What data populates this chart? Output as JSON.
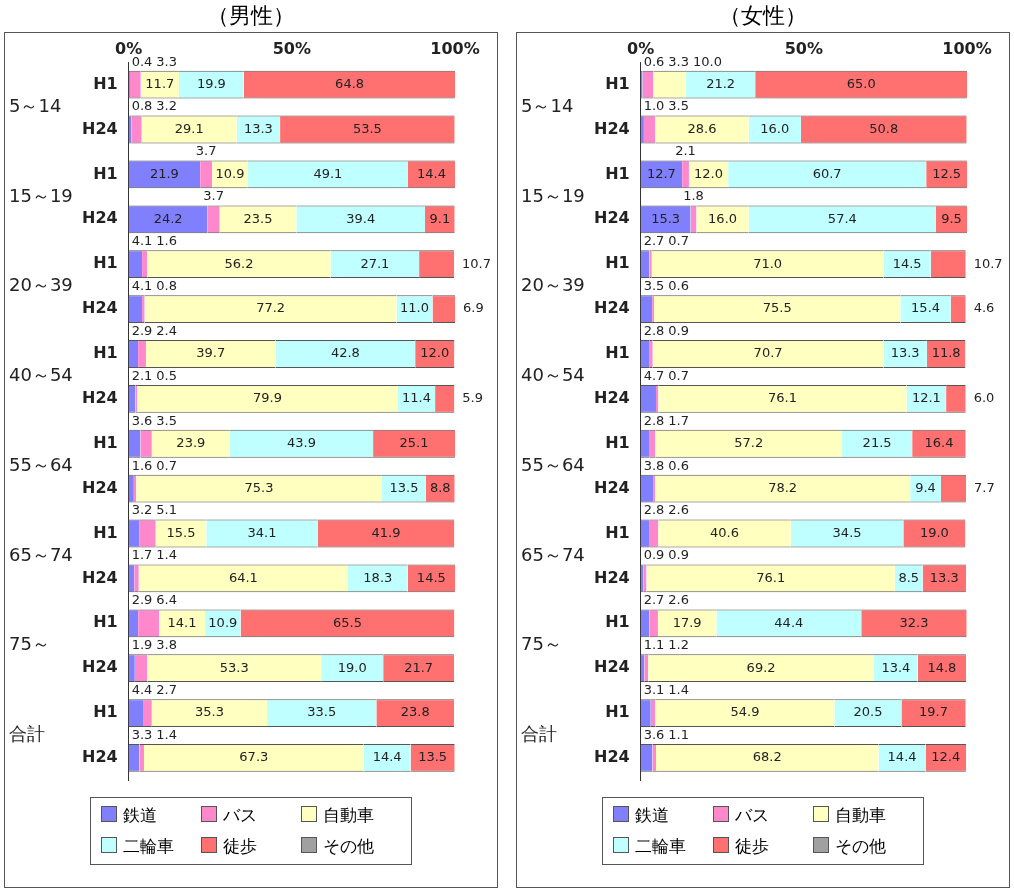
{
  "chart_data": [
    {
      "type": "bar",
      "title": "（男性）",
      "orientation": "horizontal",
      "stacked": true,
      "categories": [
        "H1",
        "H24",
        "H1",
        "H24",
        "H1",
        "H24",
        "H1",
        "H24",
        "H1",
        "H24",
        "H1",
        "H24",
        "H1",
        "H24",
        "H1",
        "H24"
      ],
      "annotations": [
        "5～14",
        "15～19",
        "20～39",
        "40～54",
        "55～64",
        "65～74",
        "75～",
        "合計"
      ],
      "xlim": [
        0,
        100
      ],
      "xticks": [
        {
          "value": 0,
          "label": "0%"
        },
        {
          "value": 50,
          "label": "50%"
        },
        {
          "value": 100,
          "label": "100%"
        }
      ],
      "legend": "bottom",
      "series": [
        {
          "name": "鉄道",
          "color": "#8080ff",
          "values": [
            0.4,
            0.8,
            21.9,
            24.2,
            4.1,
            4.1,
            2.9,
            2.1,
            3.6,
            1.6,
            3.2,
            1.7,
            2.9,
            1.9,
            4.4,
            3.3
          ],
          "value_labels": [
            "0.4",
            "0.8",
            "21.9",
            "24.2",
            "4.1",
            "4.1",
            "2.9",
            "2.1",
            "3.6",
            "1.6",
            "3.2",
            "1.7",
            "2.9",
            "1.9",
            "4.4",
            "3.3"
          ]
        },
        {
          "name": "バス",
          "color": "#ff88cc",
          "values": [
            3.3,
            3.2,
            3.7,
            3.7,
            1.6,
            0.8,
            2.4,
            0.5,
            3.5,
            0.7,
            5.1,
            1.4,
            6.4,
            3.8,
            2.7,
            1.4
          ],
          "value_labels": [
            "3.3",
            "3.2",
            "3.7",
            "3.7",
            "1.6",
            "0.8",
            "2.4",
            "0.5",
            "3.5",
            "0.7",
            "5.1",
            "1.4",
            "6.4",
            "3.8",
            "2.7",
            "1.4"
          ]
        },
        {
          "name": "自動車",
          "color": "#ffffc0",
          "values": [
            11.7,
            29.1,
            10.9,
            23.5,
            56.2,
            77.2,
            39.7,
            79.9,
            23.9,
            75.3,
            15.5,
            64.1,
            14.1,
            53.3,
            35.3,
            67.3
          ],
          "value_labels": [
            "11.7",
            "29.1",
            "10.9",
            "23.5",
            "56.2",
            "77.2",
            "39.7",
            "79.9",
            "23.9",
            "75.3",
            "15.5",
            "64.1",
            "14.1",
            "53.3",
            "35.3",
            "67.3"
          ]
        },
        {
          "name": "二輪車",
          "color": "#c0ffff",
          "values": [
            19.9,
            13.3,
            49.1,
            39.4,
            27.1,
            11.0,
            42.8,
            11.4,
            43.9,
            13.5,
            34.1,
            18.3,
            10.9,
            19.0,
            33.5,
            14.4
          ],
          "value_labels": [
            "19.9",
            "13.3",
            "49.1",
            "39.4",
            "27.1",
            "11.0",
            "42.8",
            "11.4",
            "43.9",
            "13.5",
            "34.1",
            "18.3",
            "10.9",
            "19.0",
            "33.5",
            "14.4"
          ]
        },
        {
          "name": "徒歩",
          "color": "#ff7070",
          "values": [
            64.8,
            53.5,
            14.4,
            9.1,
            10.7,
            6.9,
            12.0,
            5.9,
            25.1,
            8.8,
            41.9,
            14.5,
            65.5,
            21.7,
            23.8,
            13.5
          ],
          "value_labels": [
            "64.8",
            "53.5",
            "14.4",
            "9.1",
            "10.7",
            "6.9",
            "12.0",
            "5.9",
            "25.1",
            "8.8",
            "41.9",
            "14.5",
            "65.5",
            "21.7",
            "23.8",
            "13.5"
          ]
        },
        {
          "name": "その他",
          "color": "#a0a0a0",
          "values": [
            null,
            null,
            null,
            null,
            null,
            null,
            null,
            null,
            null,
            null,
            null,
            null,
            null,
            null,
            null,
            null
          ]
        }
      ]
    },
    {
      "type": "bar",
      "title": "（女性）",
      "orientation": "horizontal",
      "stacked": true,
      "categories": [
        "H1",
        "H24",
        "H1",
        "H24",
        "H1",
        "H24",
        "H1",
        "H24",
        "H1",
        "H24",
        "H1",
        "H24",
        "H1",
        "H24",
        "H1",
        "H24"
      ],
      "annotations": [
        "5～14",
        "15～19",
        "20～39",
        "40～54",
        "55～64",
        "65～74",
        "75～",
        "合計"
      ],
      "xlim": [
        0,
        100
      ],
      "xticks": [
        {
          "value": 0,
          "label": "0%"
        },
        {
          "value": 50,
          "label": "50%"
        },
        {
          "value": 100,
          "label": "100%"
        }
      ],
      "legend": "bottom",
      "series": [
        {
          "name": "鉄道",
          "color": "#8080ff",
          "values": [
            0.6,
            1.0,
            12.7,
            15.3,
            2.7,
            3.5,
            2.8,
            4.7,
            2.8,
            3.8,
            2.8,
            0.9,
            2.7,
            1.1,
            3.1,
            3.6
          ],
          "value_labels": [
            "0.6",
            "1.0",
            "12.7",
            "15.3",
            "2.7",
            "3.5",
            "2.8",
            "4.7",
            "2.8",
            "3.8",
            "2.8",
            "0.9",
            "2.7",
            "1.1",
            "3.1",
            "3.6"
          ]
        },
        {
          "name": "バス",
          "color": "#ff88cc",
          "values": [
            3.3,
            3.5,
            2.1,
            1.8,
            0.7,
            0.6,
            0.9,
            0.7,
            1.7,
            0.6,
            2.6,
            0.9,
            2.6,
            1.2,
            1.4,
            1.1
          ],
          "value_labels": [
            "3.3",
            "3.5",
            "2.1",
            "1.8",
            "0.7",
            "0.6",
            "0.9",
            "0.7",
            "1.7",
            "0.6",
            "2.6",
            "0.9",
            "2.6",
            "1.2",
            "1.4",
            "1.1"
          ]
        },
        {
          "name": "自動車",
          "color": "#ffffc0",
          "values": [
            10.0,
            28.6,
            12.0,
            16.0,
            71.0,
            75.5,
            70.7,
            76.1,
            57.2,
            78.2,
            40.6,
            76.1,
            17.9,
            69.2,
            54.9,
            68.2
          ],
          "value_labels": [
            "10.0",
            "28.6",
            "12.0",
            "16.0",
            "71.0",
            "75.5",
            "70.7",
            "76.1",
            "57.2",
            "78.2",
            "40.6",
            "76.1",
            "17.9",
            "69.2",
            "54.9",
            "68.2"
          ]
        },
        {
          "name": "二輪車",
          "color": "#c0ffff",
          "values": [
            21.2,
            16.0,
            60.7,
            57.4,
            14.5,
            15.4,
            13.3,
            12.1,
            21.5,
            9.4,
            34.5,
            8.5,
            44.4,
            13.4,
            20.5,
            14.4
          ],
          "value_labels": [
            "21.2",
            "16.0",
            "60.7",
            "57.4",
            "14.5",
            "15.4",
            "13.3",
            "12.1",
            "21.5",
            "9.4",
            "34.5",
            "8.5",
            "44.4",
            "13.4",
            "20.5",
            "14.4"
          ]
        },
        {
          "name": "徒歩",
          "color": "#ff7070",
          "values": [
            65.0,
            50.8,
            12.5,
            9.5,
            10.7,
            4.6,
            11.8,
            6.0,
            16.4,
            7.7,
            19.0,
            13.3,
            32.3,
            14.8,
            19.7,
            12.4
          ],
          "value_labels": [
            "65.0",
            "50.8",
            "12.5",
            "9.5",
            "10.7",
            "4.6",
            "11.8",
            "6.0",
            "16.4",
            "7.7",
            "19.0",
            "13.3",
            "32.3",
            "14.8",
            "19.7",
            "12.4"
          ]
        },
        {
          "name": "その他",
          "color": "#a0a0a0",
          "values": [
            null,
            null,
            null,
            null,
            null,
            null,
            null,
            null,
            null,
            null,
            null,
            null,
            null,
            null,
            null,
            null
          ]
        }
      ]
    }
  ]
}
